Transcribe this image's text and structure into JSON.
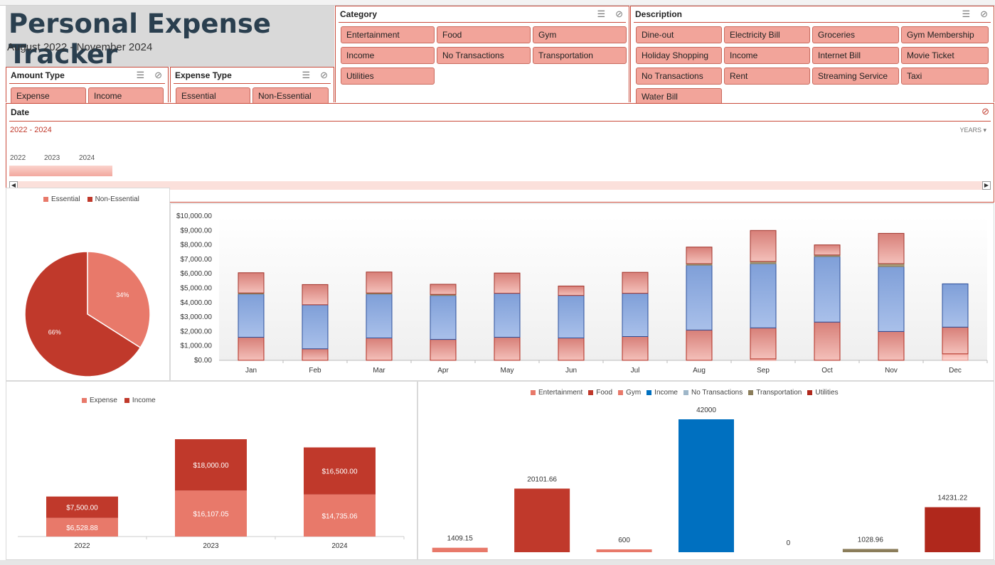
{
  "title": "Personal Expense Tracker",
  "subtitle": "August 2022 - November 2024",
  "slicers": {
    "amount_type": {
      "header": "Amount Type",
      "items": [
        "Expense",
        "Income"
      ]
    },
    "expense_type": {
      "header": "Expense Type",
      "items": [
        "Essential",
        "Non-Essential"
      ]
    },
    "category": {
      "header": "Category",
      "items": [
        "Entertainment",
        "Food",
        "Gym",
        "Income",
        "No Transactions",
        "Transportation",
        "Utilities"
      ]
    },
    "description": {
      "header": "Description",
      "items": [
        "Dine-out",
        "Electricity Bill",
        "Groceries",
        "Gym Membership",
        "Holiday Shopping",
        "Income",
        "Internet Bill",
        "Movie Ticket",
        "No Transactions",
        "Rent",
        "Streaming Service",
        "Taxi",
        "Water Bill"
      ]
    }
  },
  "timeline": {
    "header": "Date",
    "range": "2022 - 2024",
    "level": "YEARS",
    "years": [
      "2022",
      "2023",
      "2024"
    ]
  },
  "icons": {
    "multiselect": "multi-select-icon",
    "clear": "clear-filter-icon",
    "dropdown": "dropdown-arrow-icon"
  },
  "colors": {
    "accent": "#c0392b",
    "light": "#e8796a",
    "blue": "#8eaadb",
    "income": "#0070c0",
    "noTx": "#9fb7c9",
    "transport": "#8b7d5a",
    "utilities": "#b0281c"
  },
  "chart_data": [
    {
      "type": "pie",
      "legend": [
        "Essential",
        "Non-Essential"
      ],
      "values": [
        34,
        66
      ],
      "labels": [
        "34%",
        "66%"
      ],
      "legend_position": "top"
    },
    {
      "type": "bar",
      "stacked": true,
      "categories": [
        "Jan",
        "Feb",
        "Mar",
        "Apr",
        "May",
        "Jun",
        "Jul",
        "Aug",
        "Sep",
        "Oct",
        "Nov",
        "Dec"
      ],
      "yticks": [
        "$0.00",
        "$1,000.00",
        "$2,000.00",
        "$3,000.00",
        "$4,000.00",
        "$5,000.00",
        "$6,000.00",
        "$7,000.00",
        "$8,000.00",
        "$9,000.00",
        "$10,000.00"
      ],
      "ylim": [
        0,
        10000
      ],
      "series": [
        {
          "values": [
            0,
            0,
            0,
            0,
            0,
            0,
            0,
            0,
            100,
            0,
            0,
            450
          ]
        },
        {
          "values": [
            1600,
            800,
            1550,
            1450,
            1600,
            1550,
            1650,
            2100,
            2150,
            2650,
            2000,
            1850
          ]
        },
        {
          "values": [
            3000,
            3050,
            3050,
            3050,
            3050,
            2950,
            3000,
            4500,
            4450,
            4550,
            4500,
            3000
          ]
        },
        {
          "values": [
            70,
            0,
            70,
            70,
            0,
            0,
            0,
            100,
            150,
            100,
            200,
            0
          ]
        },
        {
          "values": [
            1400,
            1400,
            1450,
            700,
            1400,
            650,
            1450,
            1150,
            2150,
            700,
            2100,
            0
          ]
        }
      ]
    },
    {
      "type": "bar",
      "stacked": true,
      "categories": [
        "2022",
        "2023",
        "2024"
      ],
      "legend": [
        "Expense",
        "Income"
      ],
      "series": [
        {
          "name": "Expense",
          "values": [
            6528.88,
            16107.05,
            14735.06
          ],
          "labels": [
            "$6,528.88",
            "$16,107.05",
            "$14,735.06"
          ]
        },
        {
          "name": "Income",
          "values": [
            7500,
            18000,
            16500
          ],
          "labels": [
            "$7,500.00",
            "$18,000.00",
            "$16,500.00"
          ]
        }
      ]
    },
    {
      "type": "bar",
      "legend": [
        "Entertainment",
        "Food",
        "Gym",
        "Income",
        "No Transactions",
        "Transportation",
        "Utilities"
      ],
      "categories": [
        "Entertainment",
        "Food",
        "Gym",
        "Income",
        "No Transactions",
        "Transportation",
        "Utilities"
      ],
      "values": [
        1409.15,
        20101.66,
        600,
        42000,
        0,
        1028.96,
        14231.22
      ],
      "labels": [
        "1409.15",
        "20101.66",
        "600",
        "42000",
        "0",
        "1028.96",
        "14231.22"
      ]
    }
  ]
}
